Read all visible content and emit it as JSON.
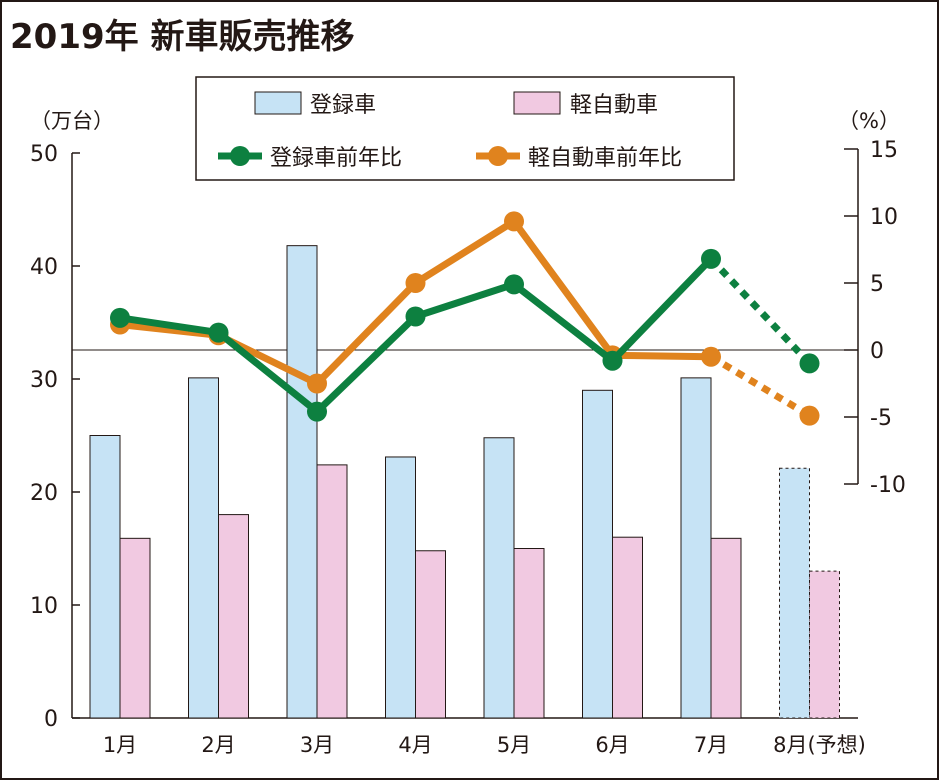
{
  "chart_data": {
    "type": "bar+line",
    "title": "2019年  新車販売推移",
    "left_axis": {
      "label": "（万台）",
      "range": [
        0,
        50
      ],
      "ticks": [
        0,
        10,
        20,
        30,
        40,
        50
      ]
    },
    "right_axis": {
      "label": "（%）",
      "range": [
        -10,
        15
      ],
      "ticks": [
        -10,
        -5,
        0,
        5,
        10,
        15
      ]
    },
    "categories": [
      "1月",
      "2月",
      "3月",
      "4月",
      "5月",
      "6月",
      "7月",
      "8月(予想)"
    ],
    "forecast_index": 7,
    "bar_series": [
      {
        "name": "登録車",
        "color": "#c6e3f5",
        "values": [
          25.0,
          30.1,
          41.8,
          23.1,
          24.8,
          29.0,
          30.1,
          22.1
        ]
      },
      {
        "name": "軽自動車",
        "color": "#f1c9e1",
        "values": [
          15.9,
          18.0,
          22.4,
          14.8,
          15.0,
          16.0,
          15.9,
          13.0
        ]
      }
    ],
    "line_series": [
      {
        "name": "登録車前年比",
        "color": "#0d8040",
        "values": [
          2.4,
          1.3,
          -4.6,
          2.5,
          4.9,
          -0.8,
          6.8,
          -1.0
        ]
      },
      {
        "name": "軽自動車前年比",
        "color": "#e0831e",
        "values": [
          1.9,
          1.1,
          -2.5,
          5.0,
          9.6,
          -0.4,
          -0.5,
          -4.9
        ]
      }
    ],
    "legend": "top-center",
    "grid": false
  }
}
